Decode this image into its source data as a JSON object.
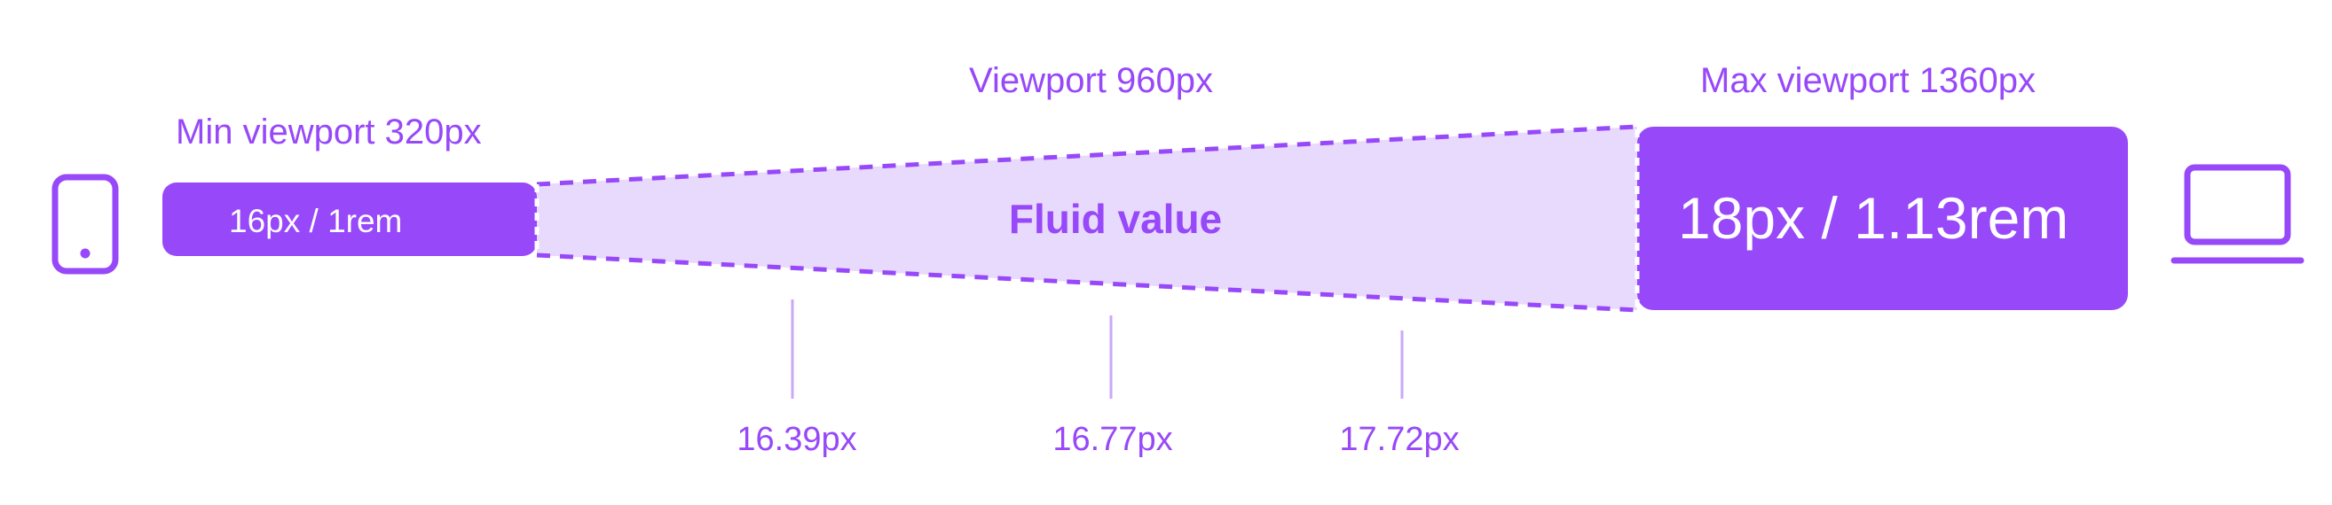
{
  "diagram": {
    "min_viewport_label": "Min viewport 320px",
    "mid_viewport_label": "Viewport 960px",
    "max_viewport_label": "Max viewport 1360px",
    "min_value_label": "16px / 1rem",
    "max_value_label": "18px / 1.13rem",
    "fluid_label": "Fluid value",
    "ticks": [
      "16.39px",
      "16.77px",
      "17.72px"
    ],
    "icons": {
      "left": "phone-icon",
      "right": "laptop-icon"
    },
    "colors": {
      "accent": "#9748F9",
      "fluid_fill": "#E8DAFC",
      "tick_line": "#C9A9F7"
    }
  }
}
